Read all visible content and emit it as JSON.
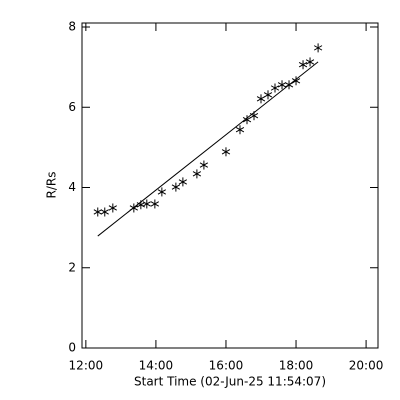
{
  "chart_data": {
    "type": "scatter",
    "x_label": "Start Time (02-Jun-25 11:54:07)",
    "y_label": "R/Rs",
    "xlim": [
      11.89,
      20.34
    ],
    "ylim": [
      0,
      8.1
    ],
    "xticks": [
      {
        "value": 12,
        "label": "12:00"
      },
      {
        "value": 14,
        "label": "14:00"
      },
      {
        "value": 16,
        "label": "16:00"
      },
      {
        "value": 18,
        "label": "18:00"
      },
      {
        "value": 20,
        "label": "20:00"
      }
    ],
    "yticks": [
      0,
      2,
      4,
      6,
      8
    ],
    "series": [
      {
        "style": "asterisk",
        "color": "#000000",
        "x": [
          12.34,
          12.54,
          12.77,
          13.37,
          13.57,
          13.74,
          13.97,
          14.17,
          14.57,
          14.77,
          15.17,
          15.37,
          16.0,
          16.4,
          16.6,
          16.8,
          17.0,
          17.2,
          17.4,
          17.6,
          17.8,
          18.0,
          18.2,
          18.4,
          18.63
        ],
        "values": [
          3.39,
          3.39,
          3.49,
          3.49,
          3.57,
          3.59,
          3.59,
          3.89,
          4.01,
          4.14,
          4.34,
          4.56,
          4.89,
          5.44,
          5.69,
          5.79,
          6.21,
          6.31,
          6.48,
          6.56,
          6.56,
          6.66,
          7.06,
          7.13,
          7.48
        ]
      },
      {
        "style": "line",
        "color": "#000000",
        "x": [
          12.34,
          18.63
        ],
        "values": [
          2.79,
          7.13
        ]
      }
    ]
  }
}
